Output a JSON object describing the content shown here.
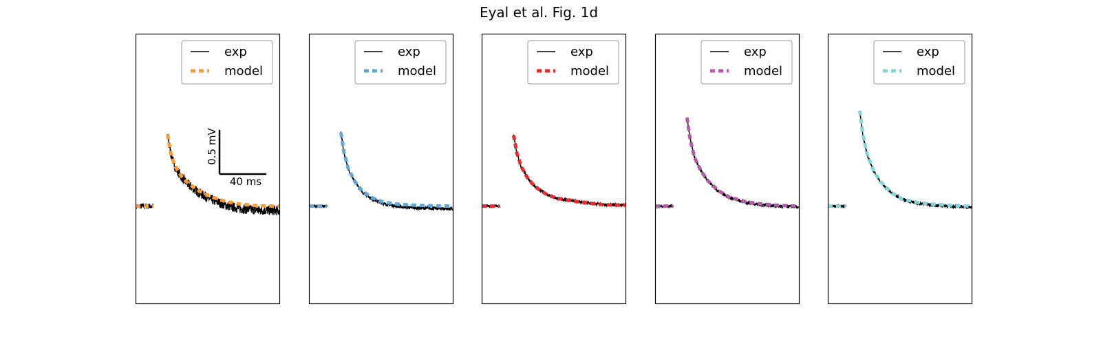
{
  "figure": {
    "title": "Eyal et al. Fig. 1d"
  },
  "legend": {
    "exp_label": "exp",
    "model_label": "model",
    "exp_color": "#000000"
  },
  "scale_bar": {
    "voltage_label": "0.5 mV",
    "time_label": "40 ms",
    "voltage_mV": 0.5,
    "time_ms": 40
  },
  "chart_data": [
    {
      "type": "line",
      "title": "",
      "model_color": "#ff9a2e",
      "onset_ms": 15,
      "baseline_mV": 0,
      "peak_mV": 0.81,
      "decay": [
        [
          15,
          0.81
        ],
        [
          18,
          0.6
        ],
        [
          22,
          0.45
        ],
        [
          28,
          0.34
        ],
        [
          35,
          0.25
        ],
        [
          45,
          0.17
        ],
        [
          55,
          0.11
        ],
        [
          70,
          0.05
        ],
        [
          85,
          0.02
        ],
        [
          100,
          0.005
        ],
        [
          120,
          0
        ]
      ],
      "exp_end_offset_mV": -0.05,
      "noise": "high"
    },
    {
      "type": "line",
      "title": "",
      "model_color": "#5fa8dc",
      "onset_ms": 15,
      "baseline_mV": 0,
      "peak_mV": 0.83,
      "decay": [
        [
          15,
          0.83
        ],
        [
          18,
          0.6
        ],
        [
          22,
          0.42
        ],
        [
          28,
          0.28
        ],
        [
          35,
          0.17
        ],
        [
          45,
          0.09
        ],
        [
          55,
          0.045
        ],
        [
          70,
          0.02
        ],
        [
          85,
          0.01
        ],
        [
          100,
          0.005
        ],
        [
          120,
          0
        ]
      ],
      "exp_end_offset_mV": -0.03,
      "noise": "low"
    },
    {
      "type": "line",
      "title": "",
      "model_color": "#ee2a2a",
      "onset_ms": 15,
      "baseline_mV": 0,
      "peak_mV": 0.8,
      "decay": [
        [
          15,
          0.8
        ],
        [
          18,
          0.6
        ],
        [
          22,
          0.45
        ],
        [
          28,
          0.32
        ],
        [
          35,
          0.22
        ],
        [
          45,
          0.14
        ],
        [
          55,
          0.09
        ],
        [
          70,
          0.06
        ],
        [
          85,
          0.035
        ],
        [
          100,
          0.015
        ],
        [
          120,
          0.01
        ]
      ],
      "exp_end_offset_mV": 0,
      "noise": "low"
    },
    {
      "type": "line",
      "title": "",
      "model_color": "#b65aad",
      "onset_ms": 15,
      "baseline_mV": 0,
      "peak_mV": 1.0,
      "decay": [
        [
          15,
          1.0
        ],
        [
          18,
          0.75
        ],
        [
          22,
          0.55
        ],
        [
          28,
          0.4
        ],
        [
          35,
          0.28
        ],
        [
          45,
          0.17
        ],
        [
          55,
          0.1
        ],
        [
          70,
          0.05
        ],
        [
          85,
          0.025
        ],
        [
          100,
          0.01
        ],
        [
          120,
          0
        ]
      ],
      "exp_end_offset_mV": -0.01,
      "noise": "low"
    },
    {
      "type": "line",
      "title": "",
      "model_color": "#7fd6de",
      "onset_ms": 15,
      "baseline_mV": 0,
      "peak_mV": 1.08,
      "decay": [
        [
          15,
          1.08
        ],
        [
          18,
          0.8
        ],
        [
          22,
          0.58
        ],
        [
          28,
          0.4
        ],
        [
          35,
          0.27
        ],
        [
          45,
          0.15
        ],
        [
          55,
          0.08
        ],
        [
          70,
          0.04
        ],
        [
          85,
          0.02
        ],
        [
          100,
          0.01
        ],
        [
          120,
          0
        ]
      ],
      "exp_end_offset_mV": -0.01,
      "noise": "low"
    }
  ]
}
